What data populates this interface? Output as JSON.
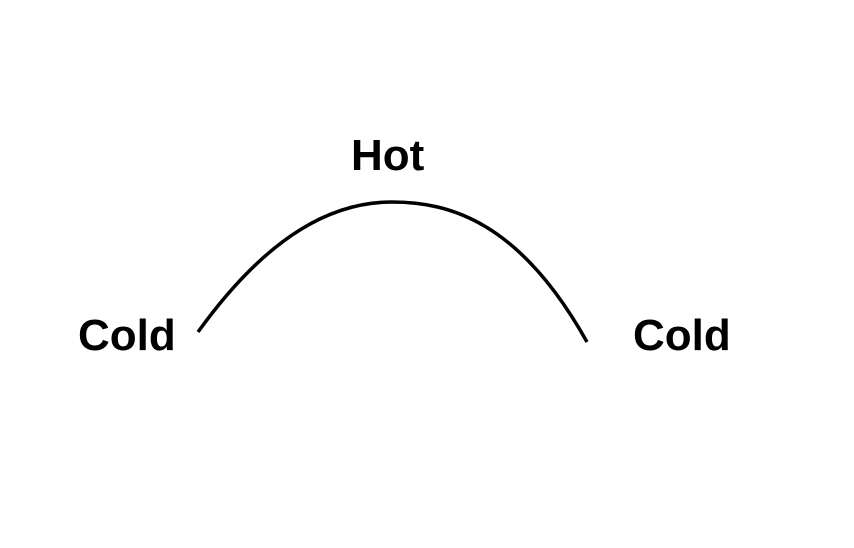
{
  "diagram": {
    "labels": {
      "peak": "Hot",
      "left_end": "Cold",
      "right_end": "Cold"
    },
    "curve": {
      "shape": "arch",
      "color": "#000000"
    },
    "text_color": "#000000",
    "background": "#ffffff"
  }
}
